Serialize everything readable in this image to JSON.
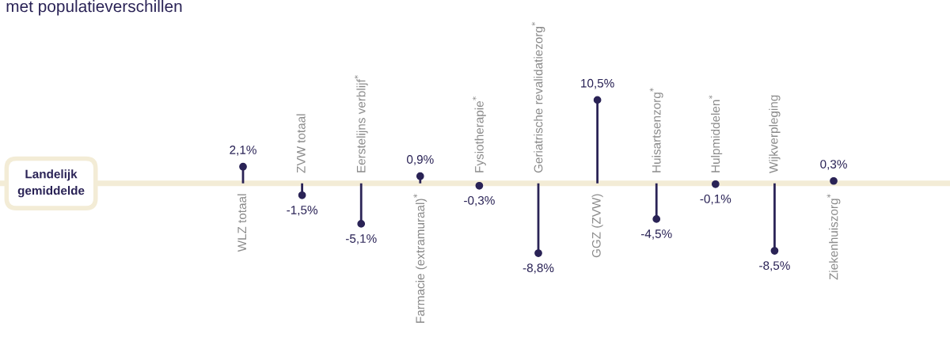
{
  "chart_data": {
    "type": "lollipop",
    "title": "met populatieverschillen",
    "categories": [
      "WLZ totaal",
      "ZVW totaal",
      "Eerstelijns verblijf$^{*}$",
      "Farmacie (extramuraal)$^{*}$",
      "Fysiotherapie$^{*}$",
      "Geriatrische revalidatiezorg$^{*}$",
      "GGZ (ZVW)",
      "Huisartsenzorg$^{*}$",
      "Hulpmiddelen$^{*}$",
      "Wijkverpleging",
      "Ziekenhuiszorg$^{*}$"
    ],
    "values": [
      2.1,
      -1.5,
      -5.1,
      0.9,
      -0.3,
      -8.8,
      10.5,
      -4.5,
      -0.1,
      -8.5,
      0.3
    ],
    "value_labels": [
      "2,1%",
      "-1,5%",
      "-5,1%",
      "0,9%",
      "-0,3%",
      "-8,8%",
      "10,5%",
      "-4,5%",
      "-0,1%",
      "-8,5%",
      "0,3%"
    ],
    "color": "#2a2356",
    "marker": "circle",
    "tick_labels": "x",
    "annotations": [
      "Landelijk\ngemiddelde"
    ]
  }
}
